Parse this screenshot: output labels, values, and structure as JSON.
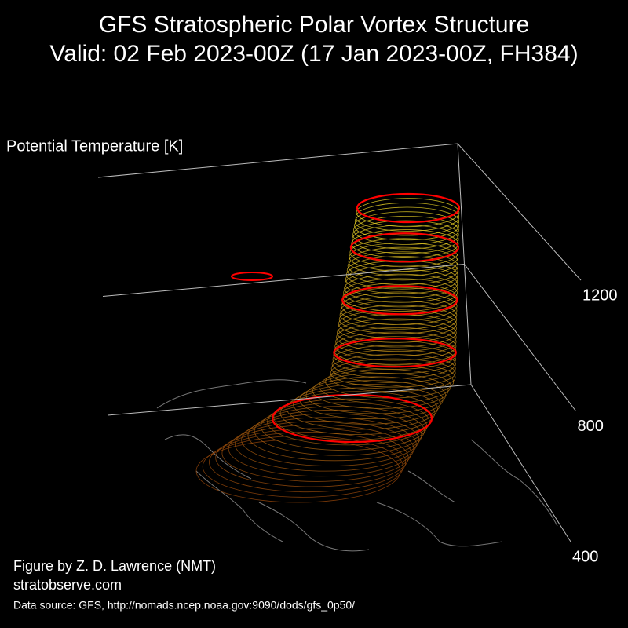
{
  "chart_data": {
    "type": "vortex3d",
    "title": "GFS Stratospheric Polar Vortex Structure",
    "subtitle": "Valid: 02 Feb 2023-00Z  (17 Jan 2023-00Z, FH384)",
    "zlabel": "Potential Temperature [K]",
    "zlim": [
      400,
      1200
    ],
    "zticks": [
      400,
      800,
      1200
    ],
    "credit": "Figure by Z. D. Lawrence (NMT)",
    "website": "stratobserve.com",
    "source": "Data source: GFS, http://nomads.ncep.noaa.gov:9090/dods/gfs_0p50/"
  }
}
